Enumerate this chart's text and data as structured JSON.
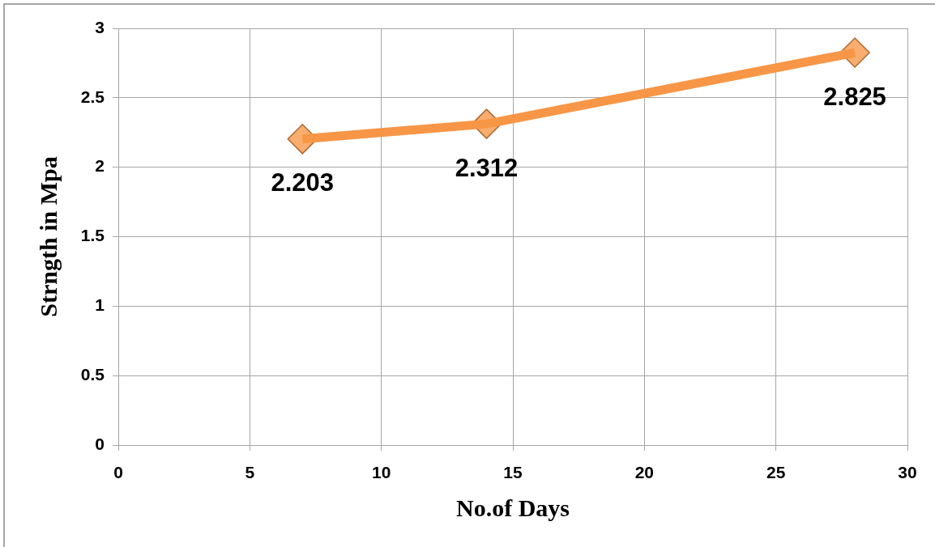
{
  "chart_data": {
    "type": "line",
    "xlabel": "No.of Days",
    "ylabel": "Strngth in Mpa",
    "x": [
      7,
      14,
      28
    ],
    "series": [
      {
        "color": "#f79646",
        "values": [
          2.203,
          2.312,
          2.825
        ]
      }
    ],
    "xlim": [
      0,
      30
    ],
    "xticks": [
      0,
      5,
      10,
      15,
      20,
      25,
      30
    ],
    "ylim": [
      0,
      3
    ],
    "yticks": [
      0,
      0.5,
      1,
      1.5,
      2,
      2.5,
      3
    ],
    "grid": true,
    "legend": false,
    "marker": "diamond",
    "line_style": "solid",
    "data_labels": true
  }
}
